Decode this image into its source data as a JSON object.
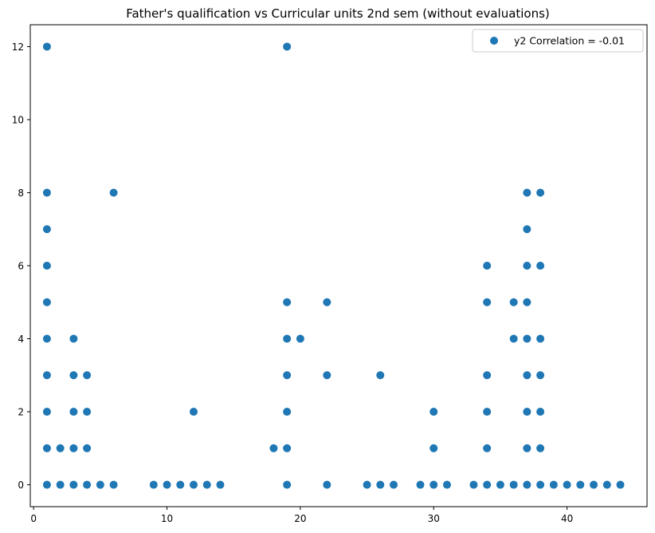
{
  "chart_data": {
    "type": "scatter",
    "title": "Father's qualification vs Curricular units 2nd sem (without evaluations)",
    "xlabel": "",
    "ylabel": "",
    "xlim": [
      -0.25,
      46.0
    ],
    "ylim": [
      -0.6,
      12.6
    ],
    "x_ticks": [
      0,
      10,
      20,
      30,
      40
    ],
    "y_ticks": [
      0,
      2,
      4,
      6,
      8,
      10,
      12
    ],
    "grid": false,
    "legend": {
      "position": "top-right"
    },
    "color": "#1f77b4",
    "series": [
      {
        "name": "y2 Correlation = -0.01",
        "points": [
          [
            1,
            0
          ],
          [
            1,
            1
          ],
          [
            1,
            2
          ],
          [
            1,
            3
          ],
          [
            1,
            4
          ],
          [
            1,
            5
          ],
          [
            1,
            6
          ],
          [
            1,
            7
          ],
          [
            1,
            8
          ],
          [
            1,
            12
          ],
          [
            2,
            0
          ],
          [
            2,
            1
          ],
          [
            3,
            0
          ],
          [
            3,
            1
          ],
          [
            3,
            2
          ],
          [
            3,
            3
          ],
          [
            3,
            4
          ],
          [
            4,
            0
          ],
          [
            4,
            1
          ],
          [
            4,
            2
          ],
          [
            4,
            3
          ],
          [
            5,
            0
          ],
          [
            6,
            0
          ],
          [
            6,
            8
          ],
          [
            9,
            0
          ],
          [
            10,
            0
          ],
          [
            11,
            0
          ],
          [
            12,
            0
          ],
          [
            12,
            2
          ],
          [
            13,
            0
          ],
          [
            14,
            0
          ],
          [
            18,
            1
          ],
          [
            19,
            0
          ],
          [
            19,
            1
          ],
          [
            19,
            2
          ],
          [
            19,
            3
          ],
          [
            19,
            4
          ],
          [
            19,
            5
          ],
          [
            19,
            12
          ],
          [
            20,
            4
          ],
          [
            22,
            0
          ],
          [
            22,
            3
          ],
          [
            22,
            5
          ],
          [
            25,
            0
          ],
          [
            26,
            0
          ],
          [
            26,
            3
          ],
          [
            27,
            0
          ],
          [
            29,
            0
          ],
          [
            30,
            0
          ],
          [
            30,
            1
          ],
          [
            30,
            2
          ],
          [
            31,
            0
          ],
          [
            33,
            0
          ],
          [
            34,
            0
          ],
          [
            34,
            1
          ],
          [
            34,
            2
          ],
          [
            34,
            3
          ],
          [
            34,
            5
          ],
          [
            34,
            6
          ],
          [
            35,
            0
          ],
          [
            36,
            0
          ],
          [
            36,
            4
          ],
          [
            36,
            5
          ],
          [
            37,
            0
          ],
          [
            37,
            1
          ],
          [
            37,
            2
          ],
          [
            37,
            3
          ],
          [
            37,
            4
          ],
          [
            37,
            5
          ],
          [
            37,
            6
          ],
          [
            37,
            7
          ],
          [
            37,
            8
          ],
          [
            38,
            0
          ],
          [
            38,
            1
          ],
          [
            38,
            2
          ],
          [
            38,
            3
          ],
          [
            38,
            4
          ],
          [
            38,
            6
          ],
          [
            38,
            8
          ],
          [
            39,
            0
          ],
          [
            40,
            0
          ],
          [
            41,
            0
          ],
          [
            42,
            0
          ],
          [
            43,
            0
          ],
          [
            44,
            0
          ]
        ]
      }
    ]
  }
}
